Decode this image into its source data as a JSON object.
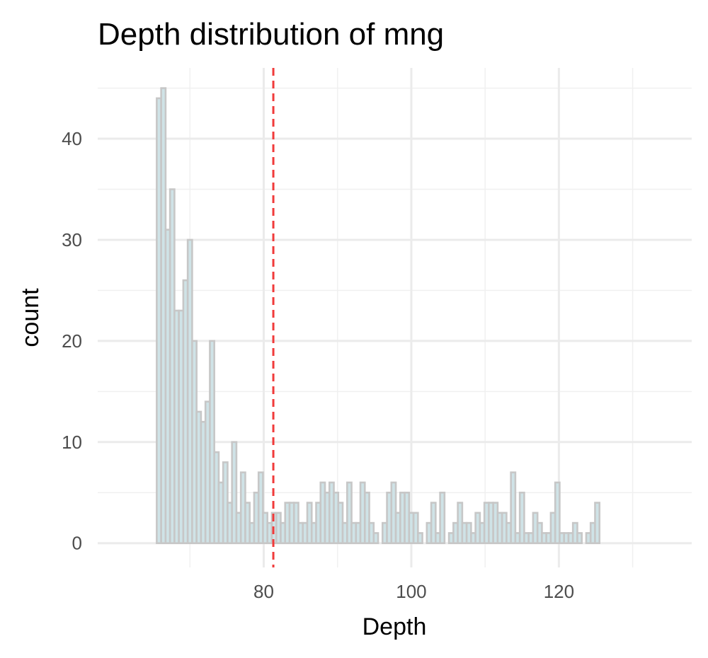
{
  "chart_data": {
    "type": "bar",
    "title": "Depth distribution of mng",
    "xlabel": "Depth",
    "ylabel": "count",
    "bins": {
      "start": 65.5,
      "width": 0.6,
      "counts": [
        44,
        45,
        31,
        35,
        23,
        23,
        26,
        30,
        20,
        13,
        12,
        14,
        20,
        9,
        6,
        8,
        4,
        10,
        3,
        7,
        4,
        2,
        5,
        7,
        3,
        2,
        3,
        3,
        2,
        4,
        4,
        4,
        2,
        2,
        4,
        2,
        4,
        6,
        5,
        6,
        5,
        4,
        2,
        6,
        2,
        2,
        6,
        5,
        2,
        1,
        0,
        2,
        5,
        6,
        3,
        5,
        5,
        3,
        3,
        1,
        0,
        2,
        4,
        1,
        5,
        0,
        1,
        2,
        4,
        2,
        2,
        1,
        3,
        2,
        4,
        4,
        4,
        3,
        3,
        2,
        7,
        1,
        5,
        1,
        1,
        3,
        2,
        1,
        1,
        3,
        6,
        1,
        1,
        1,
        2,
        1,
        0,
        1,
        2,
        4
      ]
    },
    "xlim": [
      57.5,
      138
    ],
    "ylim": [
      -2.4,
      47
    ],
    "x_ticks": [
      80,
      100,
      120
    ],
    "x_minor_ticks": [
      70,
      90,
      110,
      130
    ],
    "y_ticks": [
      0,
      10,
      20,
      30,
      40
    ],
    "y_minor_ticks": [
      5,
      15,
      25,
      35,
      45
    ],
    "reference_line": {
      "x": 81.3,
      "style": "dashed",
      "color": "#f03a3a"
    },
    "bar_fill": "#cfe3e7",
    "bar_stroke": "#c7c7c7",
    "grid": true,
    "legend": "none"
  }
}
